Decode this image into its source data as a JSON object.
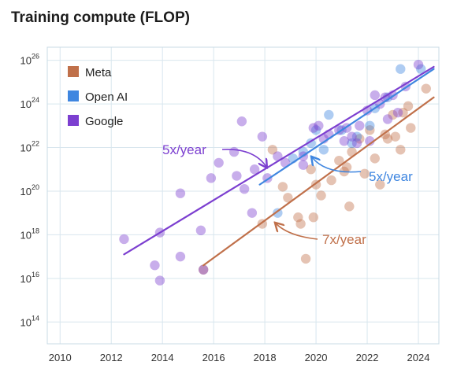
{
  "title": "Training compute (FLOP)",
  "chart_data": {
    "type": "scatter",
    "title": "Training compute (FLOP)",
    "xlabel": "",
    "ylabel": "",
    "xlim": [
      2009.5,
      2024.8
    ],
    "ylim": [
      13,
      26.6
    ],
    "y_scale": "log10",
    "x_ticks": [
      2010,
      2012,
      2014,
      2016,
      2018,
      2020,
      2022,
      2024
    ],
    "y_ticks": [
      14,
      16,
      18,
      20,
      22,
      24,
      26
    ],
    "grid": true,
    "legend_position": "top-left",
    "series": [
      {
        "name": "Meta",
        "color": "#c0704a",
        "points": [
          [
            2015.6,
            16.4
          ],
          [
            2017.9,
            18.5
          ],
          [
            2018.3,
            21.9
          ],
          [
            2018.7,
            20.2
          ],
          [
            2018.9,
            19.7
          ],
          [
            2019.3,
            18.8
          ],
          [
            2019.4,
            18.5
          ],
          [
            2019.6,
            16.9
          ],
          [
            2019.8,
            21.0
          ],
          [
            2019.9,
            18.8
          ],
          [
            2020.0,
            20.3
          ],
          [
            2020.2,
            19.8
          ],
          [
            2020.6,
            20.5
          ],
          [
            2020.9,
            21.4
          ],
          [
            2021.1,
            20.9
          ],
          [
            2021.2,
            21.1
          ],
          [
            2021.3,
            19.3
          ],
          [
            2021.4,
            21.8
          ],
          [
            2021.7,
            22.4
          ],
          [
            2021.9,
            20.8
          ],
          [
            2022.1,
            22.8
          ],
          [
            2022.3,
            21.5
          ],
          [
            2022.5,
            20.3
          ],
          [
            2022.7,
            22.6
          ],
          [
            2022.8,
            22.4
          ],
          [
            2023.0,
            23.5
          ],
          [
            2023.1,
            22.5
          ],
          [
            2023.3,
            21.9
          ],
          [
            2023.4,
            23.6
          ],
          [
            2023.6,
            23.9
          ],
          [
            2023.7,
            22.9
          ],
          [
            2024.3,
            24.7
          ]
        ]
      },
      {
        "name": "Open AI",
        "color": "#3f86e0",
        "points": [
          [
            2018.5,
            19.0
          ],
          [
            2019.1,
            21.5
          ],
          [
            2019.5,
            21.8
          ],
          [
            2019.8,
            22.2
          ],
          [
            2020.0,
            22.8
          ],
          [
            2020.3,
            21.9
          ],
          [
            2020.5,
            23.5
          ],
          [
            2021.0,
            22.8
          ],
          [
            2021.4,
            22.2
          ],
          [
            2021.6,
            22.5
          ],
          [
            2022.1,
            23.0
          ],
          [
            2022.3,
            23.8
          ],
          [
            2022.8,
            24.3
          ],
          [
            2023.3,
            25.6
          ],
          [
            2024.1,
            25.6
          ]
        ]
      },
      {
        "name": "Google",
        "color": "#7c3fd0",
        "points": [
          [
            2012.5,
            17.8
          ],
          [
            2013.7,
            16.6
          ],
          [
            2013.9,
            18.1
          ],
          [
            2013.9,
            15.9
          ],
          [
            2014.7,
            17.0
          ],
          [
            2014.7,
            19.9
          ],
          [
            2015.5,
            18.2
          ],
          [
            2015.6,
            16.4
          ],
          [
            2015.9,
            20.6
          ],
          [
            2016.2,
            21.3
          ],
          [
            2016.8,
            21.8
          ],
          [
            2016.9,
            20.7
          ],
          [
            2017.1,
            23.2
          ],
          [
            2017.2,
            20.1
          ],
          [
            2017.5,
            19.0
          ],
          [
            2017.6,
            21.0
          ],
          [
            2017.9,
            22.5
          ],
          [
            2018.1,
            20.6
          ],
          [
            2018.5,
            21.6
          ],
          [
            2018.8,
            21.3
          ],
          [
            2019.5,
            21.6
          ],
          [
            2019.5,
            21.2
          ],
          [
            2019.9,
            22.9
          ],
          [
            2020.1,
            23.0
          ],
          [
            2020.3,
            22.4
          ],
          [
            2020.5,
            22.6
          ],
          [
            2020.9,
            22.8
          ],
          [
            2021.1,
            22.3
          ],
          [
            2021.2,
            22.9
          ],
          [
            2021.4,
            22.5
          ],
          [
            2021.6,
            22.2
          ],
          [
            2021.7,
            23.0
          ],
          [
            2022.0,
            23.7
          ],
          [
            2022.1,
            22.3
          ],
          [
            2022.3,
            24.4
          ],
          [
            2022.5,
            24.0
          ],
          [
            2022.7,
            24.3
          ],
          [
            2022.8,
            23.3
          ],
          [
            2023.0,
            24.4
          ],
          [
            2023.2,
            23.6
          ],
          [
            2023.5,
            24.8
          ],
          [
            2024.0,
            25.8
          ]
        ]
      }
    ],
    "trends": [
      {
        "name": "Google",
        "color": "#7c3fd0",
        "from": [
          2012.5,
          17.1
        ],
        "to": [
          2024.6,
          25.7
        ]
      },
      {
        "name": "Open AI",
        "color": "#3f86e0",
        "from": [
          2017.8,
          20.3
        ],
        "to": [
          2024.6,
          25.6
        ]
      },
      {
        "name": "Meta",
        "color": "#c0704a",
        "from": [
          2015.6,
          16.6
        ],
        "to": [
          2024.6,
          24.3
        ]
      }
    ],
    "annotations": [
      {
        "text": "5x/year",
        "color": "#7c3fd0"
      },
      {
        "text": "5x/year",
        "color": "#3f86e0"
      },
      {
        "text": "7x/year",
        "color": "#c0704a"
      }
    ]
  }
}
